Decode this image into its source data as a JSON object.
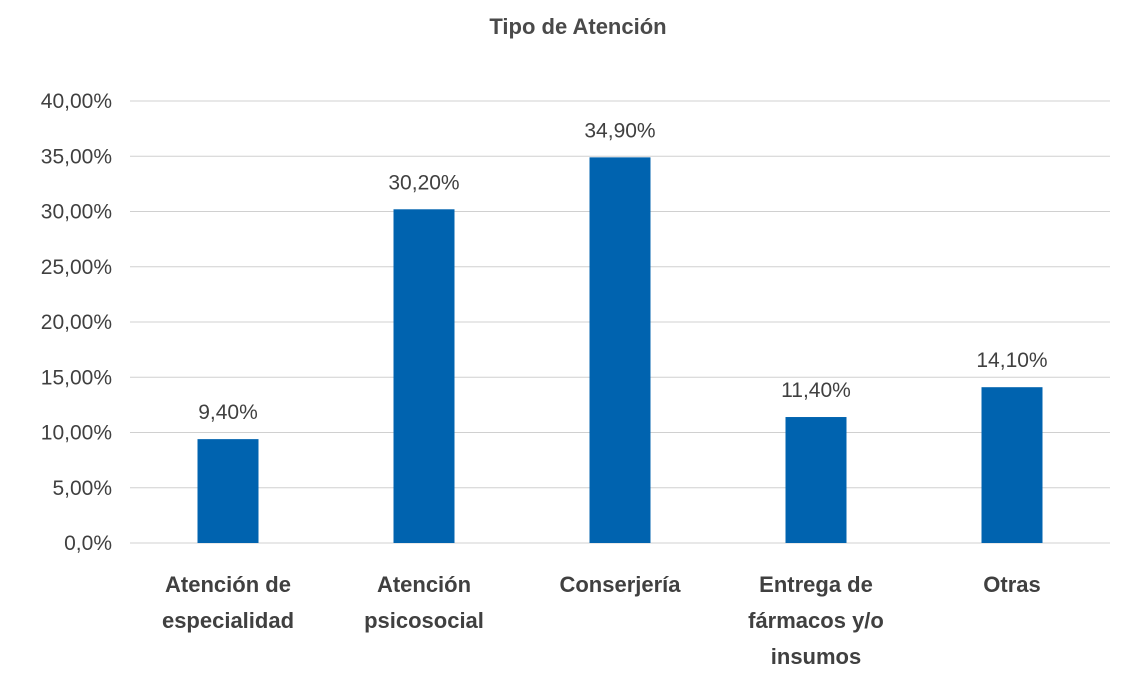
{
  "chart_data": {
    "type": "bar",
    "title": "Tipo de Atención",
    "xlabel": "",
    "ylabel": "",
    "categories": [
      [
        "Atención de",
        "especialidad"
      ],
      [
        "Atención",
        "psicosocial"
      ],
      [
        "Conserjería"
      ],
      [
        "Entrega de",
        "fármacos y/o",
        "insumos"
      ],
      [
        "Otras"
      ]
    ],
    "values": [
      9.4,
      30.2,
      34.9,
      11.4,
      14.1
    ],
    "data_labels": [
      "9,40%",
      "30,20%",
      "34,90%",
      "11,40%",
      "14,10%"
    ],
    "ylim": [
      0,
      40
    ],
    "yticks": [
      0,
      5,
      10,
      15,
      20,
      25,
      30,
      35,
      40
    ],
    "ytick_labels": [
      "0,0%",
      "5,00%",
      "10,00%",
      "15,00%",
      "20,00%",
      "25,00%",
      "30,00%",
      "35,00%",
      "40,00%"
    ],
    "grid": true,
    "legend": "none",
    "colors": {
      "bar": "#0063af",
      "grid": "#d0d0d0",
      "text": "#404040",
      "title": "#4a4a4a"
    }
  }
}
